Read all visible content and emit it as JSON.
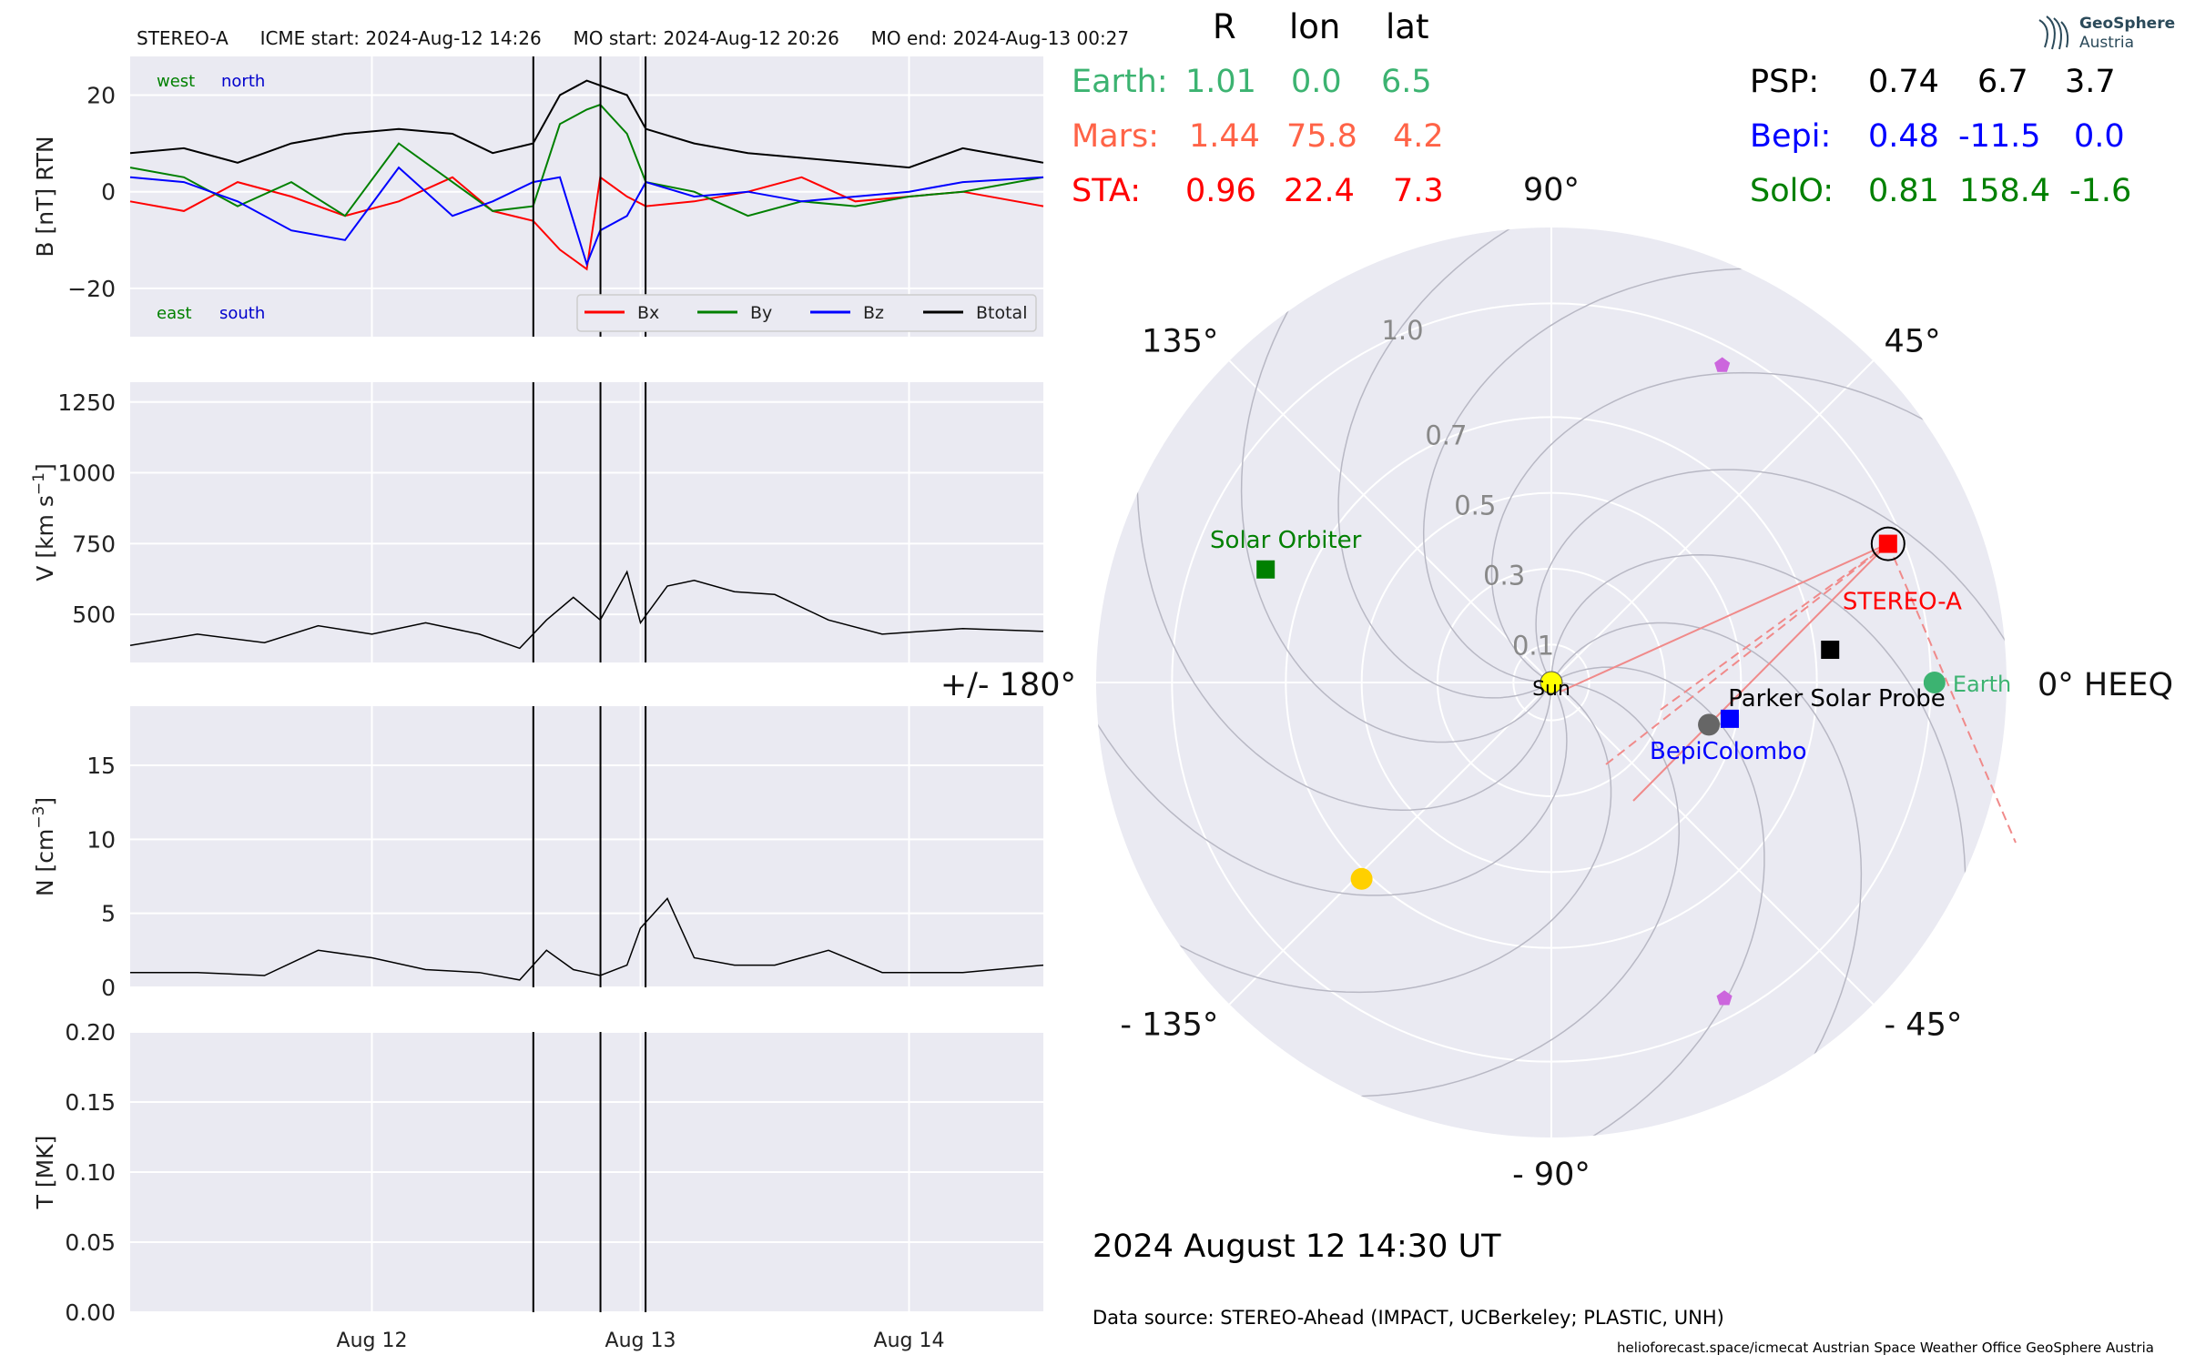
{
  "header": {
    "spacecraft": "STEREO-A",
    "icme_start": "ICME start: 2024-Aug-12 14:26",
    "mo_start": "MO start: 2024-Aug-12 20:26",
    "mo_end": "MO end: 2024-Aug-13 00:27"
  },
  "logo": {
    "line1": "GeoSphere",
    "line2": "Austria"
  },
  "positions_table": {
    "headers": [
      "R",
      "lon",
      "lat"
    ],
    "left_rows": [
      {
        "name": "Earth:",
        "r": "1.01",
        "lon": "0.0",
        "lat": "6.5",
        "color": "#3cb371"
      },
      {
        "name": "Mars:",
        "r": "1.44",
        "lon": "75.8",
        "lat": "4.2",
        "color": "#ff6347"
      },
      {
        "name": "STA:",
        "r": "0.96",
        "lon": "22.4",
        "lat": "7.3",
        "color": "#ff0000"
      }
    ],
    "right_rows": [
      {
        "name": "PSP:",
        "r": "0.74",
        "lon": "6.7",
        "lat": "3.7",
        "color": "#000000"
      },
      {
        "name": "Bepi:",
        "r": "0.48",
        "lon": "-11.5",
        "lat": "0.0",
        "color": "#0000ff"
      },
      {
        "name": "SolO:",
        "r": "0.81",
        "lon": "158.4",
        "lat": "-1.6",
        "color": "#008000"
      }
    ]
  },
  "chart_data": [
    {
      "type": "line",
      "panel": "magnetic field",
      "ylabel": "B [nT] RTN",
      "ylim": [
        -30,
        28
      ],
      "yticks": [
        -20,
        0,
        20
      ],
      "x_tick_labels": [
        "Aug 12",
        "Aug 13",
        "Aug 14"
      ],
      "x_ticks_day": [
        12.0,
        13.0,
        14.0
      ],
      "xlim_day": [
        11.1,
        14.5
      ],
      "event_lines_day": [
        12.601,
        12.851,
        13.019
      ],
      "corner_labels": {
        "top_left": "west",
        "top_right": "north",
        "bottom_left": "east",
        "bottom_right": "south"
      },
      "legend": [
        "Bx",
        "By",
        "Bz",
        "Btotal"
      ],
      "series": [
        {
          "name": "Bx",
          "color": "#ff0000",
          "x": [
            11.1,
            11.3,
            11.5,
            11.7,
            11.9,
            12.1,
            12.3,
            12.45,
            12.6,
            12.7,
            12.8,
            12.85,
            12.95,
            13.02,
            13.2,
            13.4,
            13.6,
            13.8,
            14.0,
            14.2,
            14.5
          ],
          "y": [
            -2,
            -4,
            2,
            -1,
            -5,
            -2,
            3,
            -4,
            -6,
            -12,
            -16,
            3,
            -1,
            -3,
            -2,
            0,
            3,
            -2,
            -1,
            0,
            -3
          ]
        },
        {
          "name": "By",
          "color": "#008000",
          "x": [
            11.1,
            11.3,
            11.5,
            11.7,
            11.9,
            12.1,
            12.3,
            12.45,
            12.6,
            12.7,
            12.8,
            12.85,
            12.95,
            13.02,
            13.2,
            13.4,
            13.6,
            13.8,
            14.0,
            14.2,
            14.5
          ],
          "y": [
            5,
            3,
            -3,
            2,
            -5,
            10,
            2,
            -4,
            -3,
            14,
            17,
            18,
            12,
            2,
            0,
            -5,
            -2,
            -3,
            -1,
            0,
            3
          ]
        },
        {
          "name": "Bz",
          "color": "#0000ff",
          "x": [
            11.1,
            11.3,
            11.5,
            11.7,
            11.9,
            12.1,
            12.3,
            12.45,
            12.6,
            12.7,
            12.8,
            12.85,
            12.95,
            13.02,
            13.2,
            13.4,
            13.6,
            13.8,
            14.0,
            14.2,
            14.5
          ],
          "y": [
            3,
            2,
            -2,
            -8,
            -10,
            5,
            -5,
            -2,
            2,
            3,
            -15,
            -8,
            -5,
            2,
            -1,
            0,
            -2,
            -1,
            0,
            2,
            3
          ]
        },
        {
          "name": "Btotal",
          "color": "#000000",
          "x": [
            11.1,
            11.3,
            11.5,
            11.7,
            11.9,
            12.1,
            12.3,
            12.45,
            12.6,
            12.7,
            12.8,
            12.85,
            12.95,
            13.02,
            13.2,
            13.4,
            13.6,
            13.8,
            14.0,
            14.2,
            14.5
          ],
          "y": [
            8,
            9,
            6,
            10,
            12,
            13,
            12,
            8,
            10,
            20,
            23,
            22,
            20,
            13,
            10,
            8,
            7,
            6,
            5,
            9,
            6
          ]
        }
      ]
    },
    {
      "type": "line",
      "panel": "velocity",
      "ylabel": "V [km s^-1]",
      "ylim": [
        330,
        1320
      ],
      "yticks": [
        500,
        750,
        1000,
        1250
      ],
      "event_lines_day": [
        12.601,
        12.851,
        13.019
      ],
      "series": [
        {
          "name": "",
          "color": "#000000",
          "x": [
            11.1,
            11.35,
            11.6,
            11.8,
            12.0,
            12.2,
            12.4,
            12.55,
            12.65,
            12.75,
            12.85,
            12.95,
            13.0,
            13.1,
            13.2,
            13.35,
            13.5,
            13.7,
            13.9,
            14.2,
            14.5
          ],
          "y": [
            390,
            430,
            400,
            460,
            430,
            470,
            430,
            380,
            480,
            560,
            480,
            650,
            470,
            600,
            620,
            580,
            570,
            480,
            430,
            450,
            440
          ]
        }
      ]
    },
    {
      "type": "line",
      "panel": "density",
      "ylabel": "N [cm^-3]",
      "ylim": [
        0,
        19
      ],
      "yticks": [
        0,
        5,
        10,
        15
      ],
      "event_lines_day": [
        12.601,
        12.851,
        13.019
      ],
      "series": [
        {
          "name": "",
          "color": "#000000",
          "x": [
            11.1,
            11.35,
            11.6,
            11.8,
            12.0,
            12.2,
            12.4,
            12.55,
            12.65,
            12.75,
            12.85,
            12.95,
            13.0,
            13.1,
            13.2,
            13.35,
            13.5,
            13.7,
            13.9,
            14.2,
            14.5
          ],
          "y": [
            1,
            1,
            0.8,
            2.5,
            2,
            1.2,
            1,
            0.5,
            2.5,
            1.2,
            0.8,
            1.5,
            4,
            6,
            2,
            1.5,
            1.5,
            2.5,
            1,
            1,
            1.5
          ]
        }
      ]
    },
    {
      "type": "line",
      "panel": "temperature",
      "ylabel": "T [MK]",
      "ylim": [
        0,
        0.2
      ],
      "yticks": [
        0.0,
        0.05,
        0.1,
        0.15,
        0.2
      ],
      "ytick_labels": [
        "0.00",
        "0.05",
        "0.10",
        "0.15",
        "0.20"
      ],
      "event_lines_day": [
        12.601,
        12.851,
        13.019
      ],
      "series": []
    },
    {
      "type": "scatter",
      "panel": "orbit plot",
      "coordinate_label": "0° HEEQ",
      "angle_labels": [
        "90°",
        "45°",
        "135°",
        "+/- 180°",
        "- 135°",
        "- 90°",
        "- 45°"
      ],
      "radial_ticks": [
        0.1,
        0.3,
        0.5,
        0.7,
        1.0
      ],
      "rmax": 1.2,
      "objects": [
        {
          "label": "Sun",
          "r": 0.0,
          "lon": 0,
          "color": "#ffff00",
          "marker": "circle"
        },
        {
          "label": "Earth",
          "r": 1.01,
          "lon": 0.0,
          "color": "#3cb371",
          "marker": "circle"
        },
        {
          "label": "STEREO-A",
          "r": 0.96,
          "lon": 22.4,
          "color": "#ff0000",
          "marker": "square"
        },
        {
          "label": "Parker Solar Probe",
          "r": 0.74,
          "lon": 6.7,
          "color": "#000000",
          "marker": "square"
        },
        {
          "label": "BepiColombo",
          "r": 0.48,
          "lon": -11.5,
          "color": "#0000ff",
          "marker": "square"
        },
        {
          "label": "Solar Orbiter",
          "r": 0.81,
          "lon": 158.4,
          "color": "#008000",
          "marker": "square"
        },
        {
          "label": "",
          "r": 0.43,
          "lon": -15,
          "color": "#666666",
          "marker": "circle"
        },
        {
          "label": "",
          "r": 0.72,
          "lon": -134,
          "color": "#ffd000",
          "marker": "circle"
        },
        {
          "label": "",
          "r": 0.95,
          "lon": 61.7,
          "color": "#cc66dd",
          "marker": "pentagon"
        },
        {
          "label": "",
          "r": 0.95,
          "lon": -61.3,
          "color": "#cc66dd",
          "marker": "pentagon"
        }
      ]
    }
  ],
  "footer": {
    "datetime": "2024 August 12  14:30 UT",
    "source": "Data source: STEREO-Ahead (IMPACT, UCBerkeley; PLASTIC, UNH)",
    "credits": "helioforecast.space/icmecat   Austrian Space Weather Office   GeoSphere Austria"
  }
}
